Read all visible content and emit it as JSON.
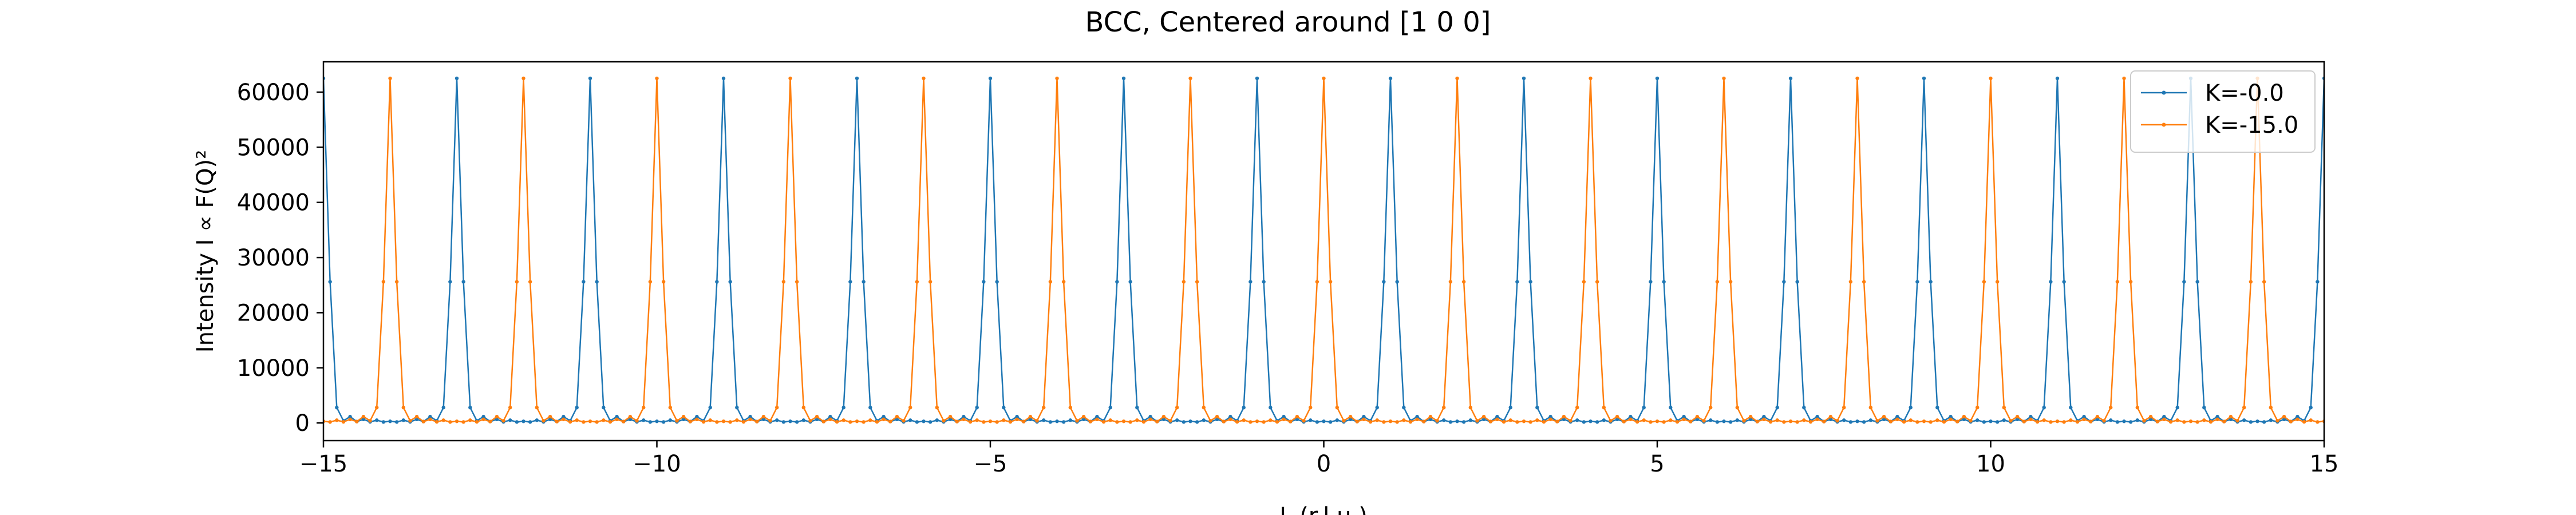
{
  "chart_data": {
    "type": "line",
    "title": "BCC, Centered around [1 0 0]",
    "xlabel": "L (r.l.u.)",
    "ylabel": "Intensity I ∝ F(Q)²",
    "xlim": [
      -15,
      15
    ],
    "ylim": [
      -3200,
      65500
    ],
    "xticks": [
      -15,
      -10,
      -5,
      0,
      5,
      10,
      15
    ],
    "xtick_labels": [
      "−15",
      "−10",
      "−5",
      "0",
      "5",
      "10",
      "15"
    ],
    "yticks": [
      0,
      10000,
      20000,
      30000,
      40000,
      50000,
      60000
    ],
    "ytick_labels": [
      "0",
      "10000",
      "20000",
      "30000",
      "40000",
      "50000",
      "60000"
    ],
    "grid": false,
    "legend_position": "top-right",
    "peak_height": 62500,
    "shoulder_height": 25600,
    "series": [
      {
        "name": "K=-0.0",
        "color": "#1f77b4",
        "peak_positions": [
          -15,
          -13,
          -11,
          -9,
          -7,
          -5,
          -3,
          -1,
          1,
          3,
          5,
          7,
          9,
          11,
          13,
          15
        ]
      },
      {
        "name": "K=-15.0",
        "color": "#ff7f0e",
        "peak_positions": [
          -14,
          -12,
          -10,
          -8,
          -6,
          -4,
          -2,
          0,
          2,
          4,
          6,
          8,
          10,
          12,
          14
        ]
      }
    ]
  }
}
